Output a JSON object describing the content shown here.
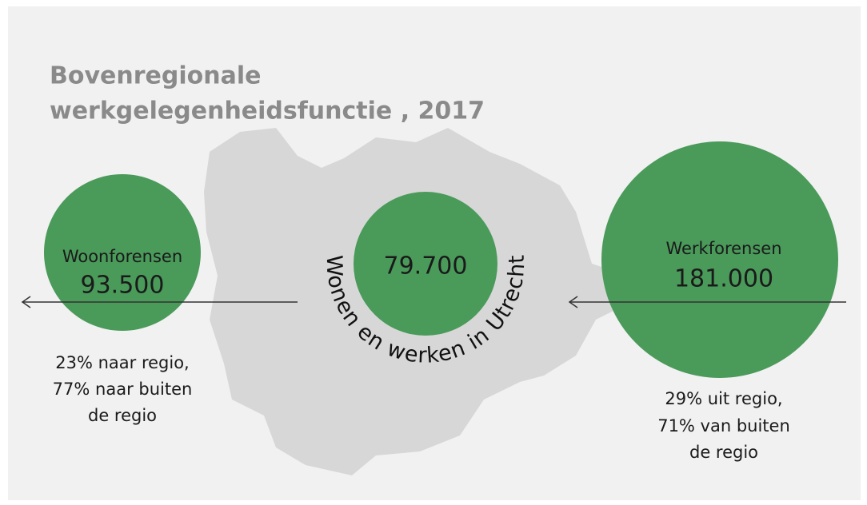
{
  "title": [
    "Bovenregionale",
    "werkgelegenheidsfunctie , 2017"
  ],
  "left": {
    "label": "Woonforensen",
    "number": "93.500",
    "caption": [
      "23% naar regio,",
      "77% naar buiten",
      "de regio"
    ]
  },
  "center": {
    "number": "79.700",
    "ring_text": "Wonen en werken in Utrecht"
  },
  "right": {
    "label": "Werkforensen",
    "number": "181.000",
    "caption": [
      "29% uit regio,",
      "71% van buiten",
      "de regio"
    ]
  }
}
